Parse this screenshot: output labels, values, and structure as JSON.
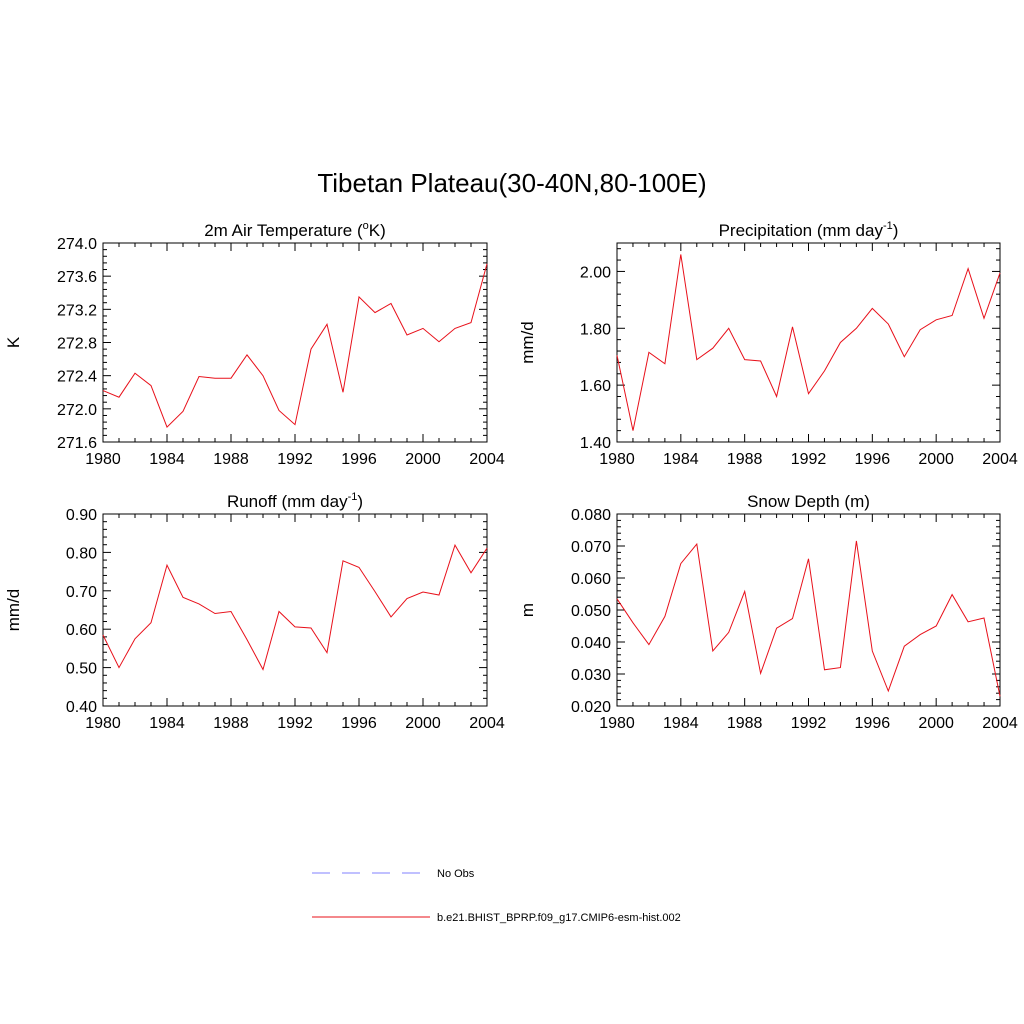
{
  "title": "Tibetan Plateau(30-40N,80-100E)",
  "colors": {
    "model": "#e8101a",
    "obs": "#8080ff",
    "axis": "#000000"
  },
  "legend": [
    {
      "label": "No Obs",
      "style": "dashed",
      "color": "#8080ff"
    },
    {
      "label": "b.e21.BHIST_BPRP.f09_g17.CMIP6-esm-hist.002",
      "style": "solid",
      "color": "#e8101a"
    }
  ],
  "chart_data": [
    {
      "type": "line",
      "title": "2m Air Temperature (",
      "title_sup": "o",
      "title_after": "K)",
      "ylabel": "K",
      "xlim": [
        1980,
        2004
      ],
      "ylim": [
        271.6,
        274.0
      ],
      "xticks": [
        "1980",
        "1984",
        "1988",
        "1992",
        "1996",
        "2000",
        "2004"
      ],
      "yticks": [
        "271.6",
        "272.0",
        "272.4",
        "272.8",
        "273.2",
        "273.6",
        "274.0"
      ],
      "x": [
        1980,
        1981,
        1982,
        1983,
        1984,
        1985,
        1986,
        1987,
        1988,
        1989,
        1990,
        1991,
        1992,
        1993,
        1994,
        1995,
        1996,
        1997,
        1998,
        1999,
        2000,
        2001,
        2002,
        2003,
        2004
      ],
      "series": [
        {
          "name": "b.e21.BHIST_BPRP.f09_g17.CMIP6-esm-hist.002",
          "values": [
            272.22,
            272.14,
            272.43,
            272.28,
            271.78,
            271.97,
            272.39,
            272.37,
            272.37,
            272.65,
            272.4,
            271.98,
            271.81,
            272.72,
            273.02,
            272.2,
            273.35,
            273.16,
            273.27,
            272.89,
            272.97,
            272.81,
            272.97,
            273.04,
            273.75
          ]
        }
      ]
    },
    {
      "type": "line",
      "title": "Precipitation (mm day",
      "title_sup": "-1",
      "title_after": ")",
      "ylabel": "mm/d",
      "xlim": [
        1980,
        2004
      ],
      "ylim": [
        1.4,
        2.1
      ],
      "xticks": [
        "1980",
        "1984",
        "1988",
        "1992",
        "1996",
        "2000",
        "2004"
      ],
      "yticks": [
        "1.40",
        "1.60",
        "1.80",
        "2.00"
      ],
      "x": [
        1980,
        1981,
        1982,
        1983,
        1984,
        1985,
        1986,
        1987,
        1988,
        1989,
        1990,
        1991,
        1992,
        1993,
        1994,
        1995,
        1996,
        1997,
        1998,
        1999,
        2000,
        2001,
        2002,
        2003,
        2004
      ],
      "series": [
        {
          "name": "b.e21.BHIST_BPRP.f09_g17.CMIP6-esm-hist.002",
          "values": [
            1.705,
            1.44,
            1.715,
            1.675,
            2.06,
            1.69,
            1.73,
            1.8,
            1.69,
            1.685,
            1.56,
            1.805,
            1.57,
            1.65,
            1.75,
            1.8,
            1.87,
            1.815,
            1.7,
            1.795,
            1.83,
            1.845,
            2.01,
            1.835,
            1.995
          ]
        }
      ]
    },
    {
      "type": "line",
      "title": "Runoff (mm day",
      "title_sup": "-1",
      "title_after": ")",
      "ylabel": "mm/d",
      "xlim": [
        1980,
        2004
      ],
      "ylim": [
        0.4,
        0.9
      ],
      "xticks": [
        "1980",
        "1984",
        "1988",
        "1992",
        "1996",
        "2000",
        "2004"
      ],
      "yticks": [
        "0.40",
        "0.50",
        "0.60",
        "0.70",
        "0.80",
        "0.90"
      ],
      "x": [
        1980,
        1981,
        1982,
        1983,
        1984,
        1985,
        1986,
        1987,
        1988,
        1989,
        1990,
        1991,
        1992,
        1993,
        1994,
        1995,
        1996,
        1997,
        1998,
        1999,
        2000,
        2001,
        2002,
        2003,
        2004
      ],
      "series": [
        {
          "name": "b.e21.BHIST_BPRP.f09_g17.CMIP6-esm-hist.002",
          "values": [
            0.585,
            0.5,
            0.575,
            0.617,
            0.767,
            0.683,
            0.666,
            0.641,
            0.646,
            0.573,
            0.495,
            0.646,
            0.606,
            0.603,
            0.539,
            0.778,
            0.761,
            0.698,
            0.632,
            0.68,
            0.697,
            0.689,
            0.819,
            0.747,
            0.811
          ]
        }
      ]
    },
    {
      "type": "line",
      "title": "Snow Depth (m)",
      "title_sup": "",
      "title_after": "",
      "ylabel": "m",
      "xlim": [
        1980,
        2004
      ],
      "ylim": [
        0.02,
        0.08
      ],
      "xticks": [
        "1980",
        "1984",
        "1988",
        "1992",
        "1996",
        "2000",
        "2004"
      ],
      "yticks": [
        "0.020",
        "0.030",
        "0.040",
        "0.050",
        "0.060",
        "0.070",
        "0.080"
      ],
      "x": [
        1980,
        1981,
        1982,
        1983,
        1984,
        1985,
        1986,
        1987,
        1988,
        1989,
        1990,
        1991,
        1992,
        1993,
        1994,
        1995,
        1996,
        1997,
        1998,
        1999,
        2000,
        2001,
        2002,
        2003,
        2004
      ],
      "series": [
        {
          "name": "b.e21.BHIST_BPRP.f09_g17.CMIP6-esm-hist.002",
          "values": [
            0.0535,
            0.046,
            0.0392,
            0.048,
            0.0645,
            0.0706,
            0.0372,
            0.043,
            0.0558,
            0.0302,
            0.0443,
            0.0473,
            0.066,
            0.0313,
            0.032,
            0.0716,
            0.0372,
            0.0247,
            0.0387,
            0.0423,
            0.045,
            0.0548,
            0.0463,
            0.0475,
            0.023
          ]
        }
      ]
    }
  ]
}
